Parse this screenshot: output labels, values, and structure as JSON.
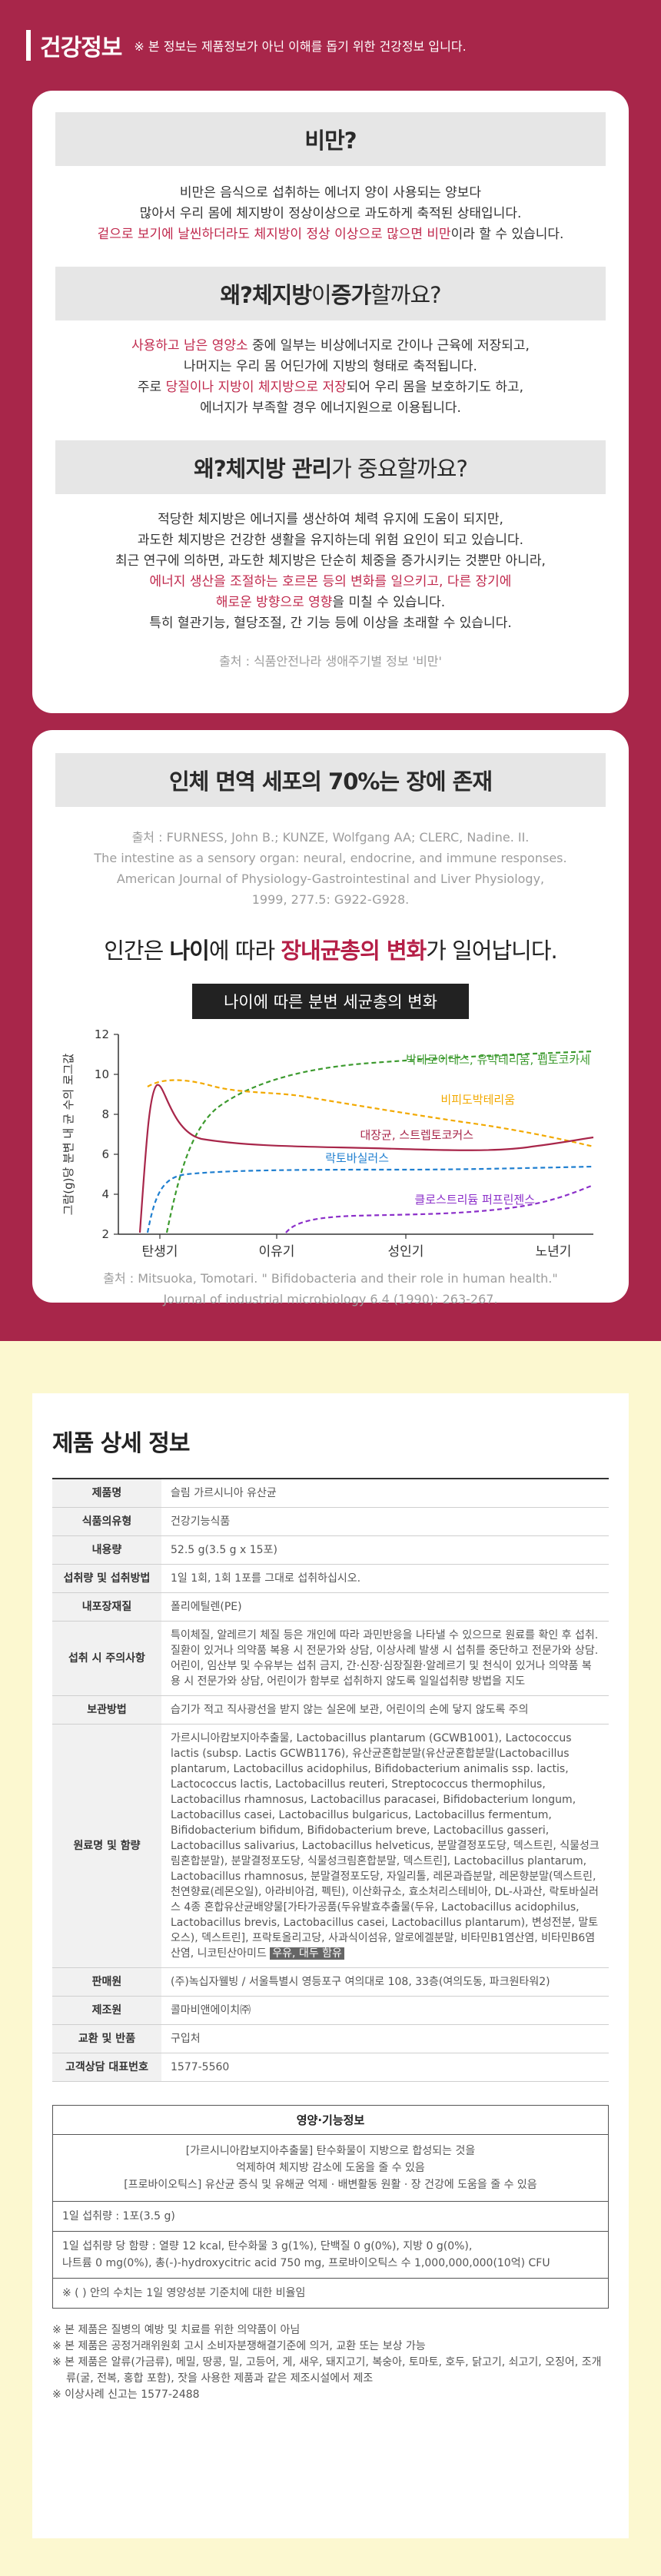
{
  "header": {
    "title": "건강정보",
    "note": "※ 본 정보는 제품정보가 아닌 이해를 돕기 위한 건강정보 입니다."
  },
  "obesity": {
    "title": "비만?",
    "lines": [
      "비만은 음식으로 섭취하는 에너지 양이 사용되는 양보다",
      "많아서 우리 몸에 체지방이 정상이상으로 과도하게 축적된 상태입니다."
    ],
    "highlight": "겉으로 보기에 날씬하더라도 체지방이 정상 이상으로 많으면 비만",
    "highlight_tail": "이라 할 수 있습니다."
  },
  "why_increase": {
    "title_a": "왜? ",
    "title_b": "체지방",
    "title_c": "이 ",
    "title_d": "증가",
    "title_e": "할까요?",
    "l1_red": "사용하고 남은 영양소",
    "l1_tail": " 중에 일부는 비상에너지로 간이나 근육에 저장되고,",
    "l2": "나머지는 우리 몸 어딘가에 지방의 형태로 축적됩니다.",
    "l3_head": "주로 ",
    "l3_red": "당질이나 지방이 체지방으로 저장",
    "l3_tail": "되어 우리 몸을 보호하기도 하고,",
    "l4": "에너지가 부족할 경우 에너지원으로 이용됩니다."
  },
  "why_manage": {
    "title_a": "왜? ",
    "title_b": "체지방 관리",
    "title_c": "가 중요할까요?",
    "l1": "적당한 체지방은 에너지를 생산하여 체력 유지에 도움이 되지만,",
    "l2": "과도한 체지방은 건강한 생활을 유지하는데 위험 요인이 되고 있습니다.",
    "l3": "최근 연구에 의하면, 과도한 체지방은 단순히 체중을 증가시키는 것뿐만 아니라,",
    "l4_red": "에너지 생산을 조절하는 호르몬 등의 변화를 일으키고, 다른 장기에",
    "l5_red": "해로운 방향으로 영향",
    "l5_tail": "을 미칠 수 있습니다.",
    "l6": "특히 혈관기능, 혈당조절, 간 기능 등에 이상을 초래할 수 있습니다.",
    "source": "출처 : 식품안전나라 생애주기별 정보 '비만'"
  },
  "immune": {
    "title": "인체 면역 세포의 70%는 장에 존재",
    "source_lines": [
      "출처 : FURNESS, John B.; KUNZE, Wolfgang AA; CLERC, Nadine. II.",
      "The intestine as a sensory organ: neural, endocrine, and immune responses.",
      "American Journal of Physiology-Gastrointestinal and Liver Physiology,",
      "1999, 277.5: G922-G928."
    ],
    "big_a": "인간은 ",
    "big_b": "나이",
    "big_c": "에 따라 ",
    "big_d": "장내균총의 변화",
    "big_e": "가 일어납니다.",
    "chart_box": "나이에 따른 분변 세균총의 변화",
    "source2_lines": [
      "출처 : Mitsuoka, Tomotari. \" Bifidobacteria and their role in human health.\"",
      "Journal of industrial microbiology 6.4 (1990): 263-267."
    ]
  },
  "chart_data": {
    "type": "line",
    "ylabel": "그람(g)당 분변 내 균 수의 로그값",
    "ylim": [
      2,
      12
    ],
    "yticks": [
      "12",
      "10",
      "8",
      "6",
      "4",
      "2"
    ],
    "categories": [
      "탄생기",
      "이유기",
      "성인기",
      "노년기"
    ],
    "series": [
      {
        "name": "박테로이데스, 유박테리움, 펩토코카세",
        "color": "#3c9a2e",
        "style": "dashed"
      },
      {
        "name": "비피도박테리움",
        "color": "#f2a900",
        "style": "dashed"
      },
      {
        "name": "대장균, 스트렙토코커스",
        "color": "#a8264a",
        "style": "solid"
      },
      {
        "name": "락토바실러스",
        "color": "#1f7fd0",
        "style": "dashed"
      },
      {
        "name": "클로스트리듐 퍼프린젠스",
        "color": "#8b2fc9",
        "style": "dashed"
      }
    ]
  },
  "product": {
    "title": "제품 상세 정보",
    "rows": [
      {
        "k": "제품명",
        "v": "슬림 가르시니아 유산균"
      },
      {
        "k": "식품의유형",
        "v": "건강기능식품"
      },
      {
        "k": "내용량",
        "v": "52.5 g(3.5 g x 15포)"
      },
      {
        "k": "섭취량 및 섭취방법",
        "v": "1일 1회, 1회 1포를 그대로 섭취하십시오."
      },
      {
        "k": "내포장재질",
        "v": "폴리에틸렌(PE)"
      },
      {
        "k": "섭취 시 주의사항",
        "v": "특이체질, 알레르기 체질 등은 개인에 따라 과민반응을 나타낼 수 있으므로 원료를 확인 후 섭취. 질환이 있거나 의약품 복용 시 전문가와 상담, 이상사례 발생 시 섭취를 중단하고 전문가와 상담. 어린이, 임산부 및 수유부는 섭취 금지, 간·신장·심장질환·알레르기 및 천식이 있거나 의약품 복용 시 전문가와 상담, 어린이가 함부로 섭취하지 않도록 일일섭취량 방법을 지도"
      },
      {
        "k": "보관방법",
        "v": "습기가 적고 직사광선을 받지 않는 실온에 보관, 어린이의 손에 닿지 않도록 주의"
      },
      {
        "k": "원료명 및 함량",
        "v": "가르시니아캄보지아추출물, Lactobacillus plantarum (GCWB1001), Lactococcus lactis (subsp. Lactis GCWB1176), 유산균혼합분말(유산균혼합분말(Lactobacillus plantarum, Lactobacillus acidophilus, Bifidobacterium animalis ssp. lactis, Lactococcus lactis, Lactobacillus reuteri, Streptococcus thermophilus, Lactobacillus rhamnosus, Lactobacillus paracasei, Bifidobacterium longum, Lactobacillus casei, Lactobacillus bulgaricus, Lactobacillus fermentum, Bifidobacterium bifidum, Bifidobacterium breve, Lactobacillus gasseri, Lactobacillus salivarius, Lactobacillus helveticus, 분말결정포도당, 덱스트린, 식물성크림혼합분말), 분말결정포도당, 식물성크림혼합분말, 덱스트린], Lactobacillus plantarum, Lactobacillus rhamnosus, 분말결정포도당, 자일리톨, 레몬과즙분말, 레몬향분말(덱스트린, 천연향료(레몬오일), 아라비아검, 펙틴), 이산화규소, 효소처리스테비아, DL-사과산, 락토바실러스 4종 혼합유산균배양물[가타가공품(두유발효추출물(두유, Lactobacillus acidophilus, Lactobacillus brevis, Lactobacillus casei, Lactobacillus plantarum), 변성전분, 말토오스), 덱스트린], 프락토올리고당, 사과식이섬유, 알로에겔분말, 비타민B1염산염, 비타민B6염산염, 니코틴산아미드 ",
        "v_hl": "우유, 대두 함유"
      },
      {
        "k": "판매원",
        "v": "(주)녹십자웰빙 / 서울특별시 영등포구 여의대로 108, 33층(여의도동, 파크원타워2)"
      },
      {
        "k": "제조원",
        "v": "콜마비앤에이치㈜"
      },
      {
        "k": "교환 및 반품",
        "v": "구입처"
      },
      {
        "k": "고객상담 대표번호",
        "v": "1577-5560"
      }
    ],
    "nutri": {
      "head": "영양·기능정보",
      "body_lines": [
        "[가르시니아캄보지아추출물] 탄수화물이 지방으로 합성되는 것을",
        "억제하여 체지방 감소에 도움을 줄 수 있음",
        "[프로바이오틱스] 유산균 증식 및 유해균 억제 · 배변활동 원활 · 장 건강에 도움을 줄 수 있음"
      ],
      "serving": "1일 섭취량 : 1포(3.5 g)",
      "amount_l1": "1일 섭취량 당 함량 : 열량 12 kcal, 탄수화물 3 g(1%), 단백질 0 g(0%), 지방 0 g(0%),",
      "amount_l2": "나트륨 0 mg(0%), 총(-)-hydroxycitric acid 750 mg, 프로바이오틱스 수 1,000,000,000(10억) CFU",
      "pct_note": "※ ( ) 안의 수치는 1일 영양성분 기준치에 대한 비율임"
    },
    "notes": [
      "※ 본 제품은 질병의 예방 및 치료를 위한 의약품이 아님",
      "※ 본 제품은 공정거래위원회 고시 소비자분쟁해결기준에 의거, 교환 또는 보상 가능",
      "※ 본 제품은 알류(가금류), 메밀, 땅콩, 밀, 고등어, 게, 새우, 돼지고기, 복숭아, 토마토, 호두, 닭고기, 쇠고기, 오징어, 조개류(굴, 전복, 홍합 포함), 잣을 사용한 제품과 같은 제조시설에서 제조",
      "※ 이상사례 신고는 1577-2488"
    ]
  }
}
